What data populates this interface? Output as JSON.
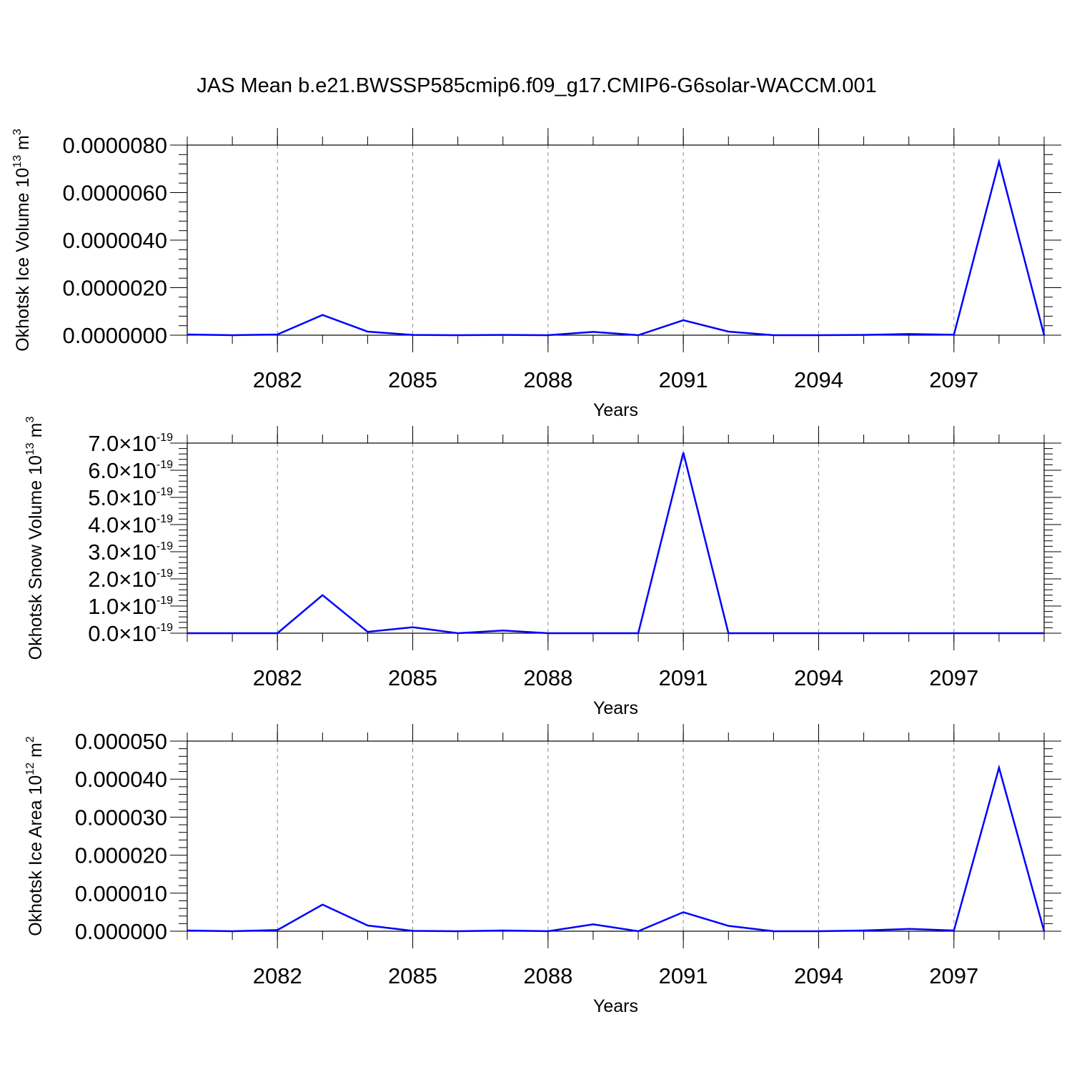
{
  "title": "JAS Mean b.e21.BWSSP585cmip6.f09_g17.CMIP6-G6solar-WACCM.001",
  "colors": {
    "line": "#0000ff",
    "axis": "#000000",
    "grid": "#888888"
  },
  "chart_data": [
    {
      "type": "line",
      "ylabel": {
        "text": "Okhotsk Ice Volume 10",
        "exp": "13",
        "unit": " m",
        "unit_exp": "3"
      },
      "xlabel": "Years",
      "xlim": [
        2080,
        2099
      ],
      "x_ticks": [
        "2082",
        "2085",
        "2088",
        "2091",
        "2094",
        "2097"
      ],
      "ylim": [
        0,
        8e-06
      ],
      "y_tick_values": [
        0,
        2e-06,
        4e-06,
        6e-06,
        8e-06
      ],
      "y_ticks": [
        "0.0000000",
        "0.0000020",
        "0.0000040",
        "0.0000060",
        "0.0000080"
      ],
      "y_tick_suffix": "",
      "grid": "vertical dashed",
      "x": [
        2080,
        2081,
        2082,
        2083,
        2084,
        2085,
        2086,
        2087,
        2088,
        2089,
        2090,
        2091,
        2092,
        2093,
        2094,
        2095,
        2096,
        2097,
        2098,
        2099
      ],
      "series": [
        {
          "values": [
            3e-08,
            0.0,
            3e-08,
            8.5e-07,
            1.5e-07,
            1e-08,
            0.0,
            1e-08,
            0.0,
            1.4e-07,
            0.0,
            6.3e-07,
            1.5e-07,
            0.0,
            0.0,
            1e-08,
            5e-08,
            2e-08,
            7.3e-06,
            0.0
          ]
        }
      ]
    },
    {
      "type": "line",
      "ylabel": {
        "text": "Okhotsk Snow Volume 10",
        "exp": "13",
        "unit": " m",
        "unit_exp": "3"
      },
      "xlabel": "Years",
      "xlim": [
        2080,
        2099
      ],
      "x_ticks": [
        "2082",
        "2085",
        "2088",
        "2091",
        "2094",
        "2097"
      ],
      "ylim": [
        0,
        7e-19
      ],
      "y_tick_values": [
        0,
        1e-19,
        2e-19,
        3e-19,
        4e-19,
        5e-19,
        6e-19,
        7e-19
      ],
      "y_ticks": [
        "0.0",
        "1.0",
        "2.0",
        "3.0",
        "4.0",
        "5.0",
        "6.0",
        "7.0"
      ],
      "y_tick_suffix": "×10",
      "y_tick_exp": "-19",
      "grid": "vertical dashed",
      "x": [
        2080,
        2081,
        2082,
        2083,
        2084,
        2085,
        2086,
        2087,
        2088,
        2089,
        2090,
        2091,
        2092,
        2093,
        2094,
        2095,
        2096,
        2097,
        2098,
        2099
      ],
      "series": [
        {
          "values": [
            0,
            0,
            0,
            1.4e-19,
            5e-21,
            2.2e-20,
            0,
            1e-20,
            0,
            0,
            0,
            6.65e-19,
            0,
            0,
            0,
            0,
            0,
            0,
            0,
            0
          ]
        }
      ]
    },
    {
      "type": "line",
      "ylabel": {
        "text": "Okhotsk Ice Area 10",
        "exp": "12",
        "unit": " m",
        "unit_exp": "2"
      },
      "xlabel": "Years",
      "xlim": [
        2080,
        2099
      ],
      "x_ticks": [
        "2082",
        "2085",
        "2088",
        "2091",
        "2094",
        "2097"
      ],
      "ylim": [
        0,
        5e-05
      ],
      "y_tick_values": [
        0,
        1e-05,
        2e-05,
        3e-05,
        4e-05,
        5e-05
      ],
      "y_ticks": [
        "0.000000",
        "0.000010",
        "0.000020",
        "0.000030",
        "0.000040",
        "0.000050"
      ],
      "y_tick_suffix": "",
      "grid": "vertical dashed",
      "x": [
        2080,
        2081,
        2082,
        2083,
        2084,
        2085,
        2086,
        2087,
        2088,
        2089,
        2090,
        2091,
        2092,
        2093,
        2094,
        2095,
        2096,
        2097,
        2098,
        2099
      ],
      "series": [
        {
          "values": [
            2e-07,
            0.0,
            3e-07,
            7e-06,
            1.5e-06,
            1e-07,
            0.0,
            2e-07,
            0.0,
            1.8e-06,
            0.0,
            5e-06,
            1.4e-06,
            0.0,
            0.0,
            2e-07,
            6e-07,
            2e-07,
            4.3e-05,
            0.0
          ]
        }
      ]
    }
  ]
}
